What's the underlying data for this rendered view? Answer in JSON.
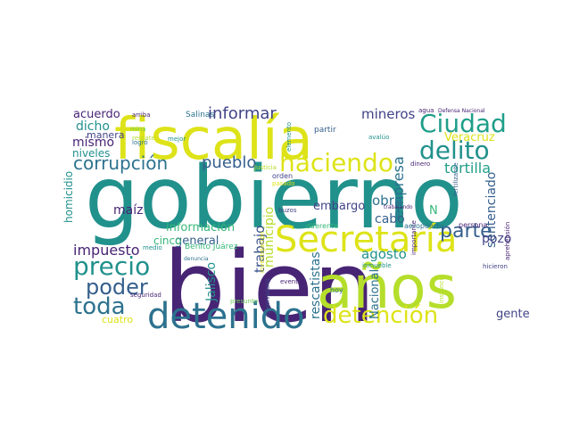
{
  "wordcloud": {
    "colors": {
      "dark_purple": "#482475",
      "purple": "#414487",
      "indigo": "#3b528b",
      "blue": "#355f8d",
      "steel": "#2c728e",
      "teal": "#21918c",
      "green_teal": "#1f9e89",
      "green": "#35b779",
      "light_green": "#6ece58",
      "lime": "#b5de2b",
      "yellow": "#dde318",
      "dark_blue_gray": "#39568c"
    },
    "words": [
      {
        "text": "gobierno",
        "color": "teal"
      },
      {
        "text": "bien",
        "color": "dark_purple"
      },
      {
        "text": "fiscalía",
        "color": "yellow"
      },
      {
        "text": "años",
        "color": "lime"
      },
      {
        "text": "Secretaría",
        "color": "yellow"
      },
      {
        "text": "detenido",
        "color": "steel"
      },
      {
        "text": "detención",
        "color": "yellow"
      },
      {
        "text": "precio",
        "color": "teal"
      },
      {
        "text": "toda",
        "color": "steel"
      },
      {
        "text": "poder",
        "color": "blue"
      },
      {
        "text": "Ciudad",
        "color": "green_teal"
      },
      {
        "text": "delito",
        "color": "teal"
      },
      {
        "text": "haciendo",
        "color": "yellow"
      },
      {
        "text": "informar",
        "color": "purple"
      },
      {
        "text": "corrupción",
        "color": "steel"
      },
      {
        "text": "parte",
        "color": "blue"
      },
      {
        "text": "pueblo",
        "color": "blue"
      },
      {
        "text": "tortilla",
        "color": "green_teal"
      },
      {
        "text": "mineros",
        "color": "purple"
      },
      {
        "text": "empresa",
        "color": "steel"
      },
      {
        "text": "Veracruz",
        "color": "yellow"
      },
      {
        "text": "sentenciado",
        "color": "blue"
      },
      {
        "text": "municipio",
        "color": "lime"
      },
      {
        "text": "trabajo",
        "color": "indigo"
      },
      {
        "text": "Jalisco",
        "color": "teal"
      },
      {
        "text": "rescatistas",
        "color": "steel"
      },
      {
        "text": "Nacional",
        "color": "steel"
      },
      {
        "text": "agosto",
        "color": "teal"
      },
      {
        "text": "impuesto",
        "color": "dark_purple"
      },
      {
        "text": "información",
        "color": "green"
      },
      {
        "text": "homicidio",
        "color": "teal"
      },
      {
        "text": "obra",
        "color": "steel"
      },
      {
        "text": "cabo",
        "color": "blue"
      },
      {
        "text": "pozo",
        "color": "purple"
      },
      {
        "text": "embargo",
        "color": "purple"
      },
      {
        "text": "maíz",
        "color": "dark_purple"
      },
      {
        "text": "general",
        "color": "blue"
      },
      {
        "text": "cinco",
        "color": "green"
      },
      {
        "text": "acuerdo",
        "color": "dark_purple"
      },
      {
        "text": "dicho",
        "color": "teal"
      },
      {
        "text": "mismo",
        "color": "dark_purple"
      },
      {
        "text": "niveles",
        "color": "teal"
      },
      {
        "text": "manera",
        "color": "purple"
      },
      {
        "text": "gente",
        "color": "purple"
      },
      {
        "text": "cuatro",
        "color": "yellow"
      },
      {
        "text": "N",
        "color": "green"
      },
      {
        "text": "Salinas",
        "color": "steel"
      },
      {
        "text": "arriba",
        "color": "dark_purple"
      },
      {
        "text": "mina",
        "color": "light_green"
      },
      {
        "text": "rescate",
        "color": "lime"
      },
      {
        "text": "logró",
        "color": "steel"
      },
      {
        "text": "mejor",
        "color": "teal"
      },
      {
        "text": "partir",
        "color": "blue"
      },
      {
        "text": "elemento",
        "color": "teal"
      },
      {
        "text": "avalúo",
        "color": "teal"
      },
      {
        "text": "agua",
        "color": "dark_purple"
      },
      {
        "text": "Defensa Nacional",
        "color": "dark_purple"
      },
      {
        "text": "dinero",
        "color": "dark_purple"
      },
      {
        "text": "orden",
        "color": "purple"
      },
      {
        "text": "pasado",
        "color": "yellow"
      },
      {
        "text": "Justicia",
        "color": "lime"
      },
      {
        "text": "buzos",
        "color": "purple"
      },
      {
        "text": "trabajando",
        "color": "dark_purple"
      },
      {
        "text": "fertilizante",
        "color": "blue"
      },
      {
        "text": "importante",
        "color": "dark_purple"
      },
      {
        "text": "Benito Juárez",
        "color": "green"
      },
      {
        "text": "medio",
        "color": "teal"
      },
      {
        "text": "denuncia",
        "color": "steel"
      },
      {
        "text": "investigación",
        "color": "yellow"
      },
      {
        "text": "cuánto",
        "color": "green_teal"
      },
      {
        "text": "diferente",
        "color": "green"
      },
      {
        "text": "aeropuerto",
        "color": "steel"
      },
      {
        "text": "persona",
        "color": "dark_purple"
      },
      {
        "text": "inmueble",
        "color": "teal"
      },
      {
        "text": "hicieron",
        "color": "purple"
      },
      {
        "text": "aprehensión",
        "color": "dark_purple"
      },
      {
        "text": "seguridad",
        "color": "dark_purple"
      },
      {
        "text": "conservadores",
        "color": "indigo"
      },
      {
        "text": "evento",
        "color": "dark_purple"
      },
      {
        "text": "presunto",
        "color": "light_green"
      },
      {
        "text": "hoy",
        "color": "steel"
      },
      {
        "text": "instancia",
        "color": "lime"
      }
    ]
  }
}
